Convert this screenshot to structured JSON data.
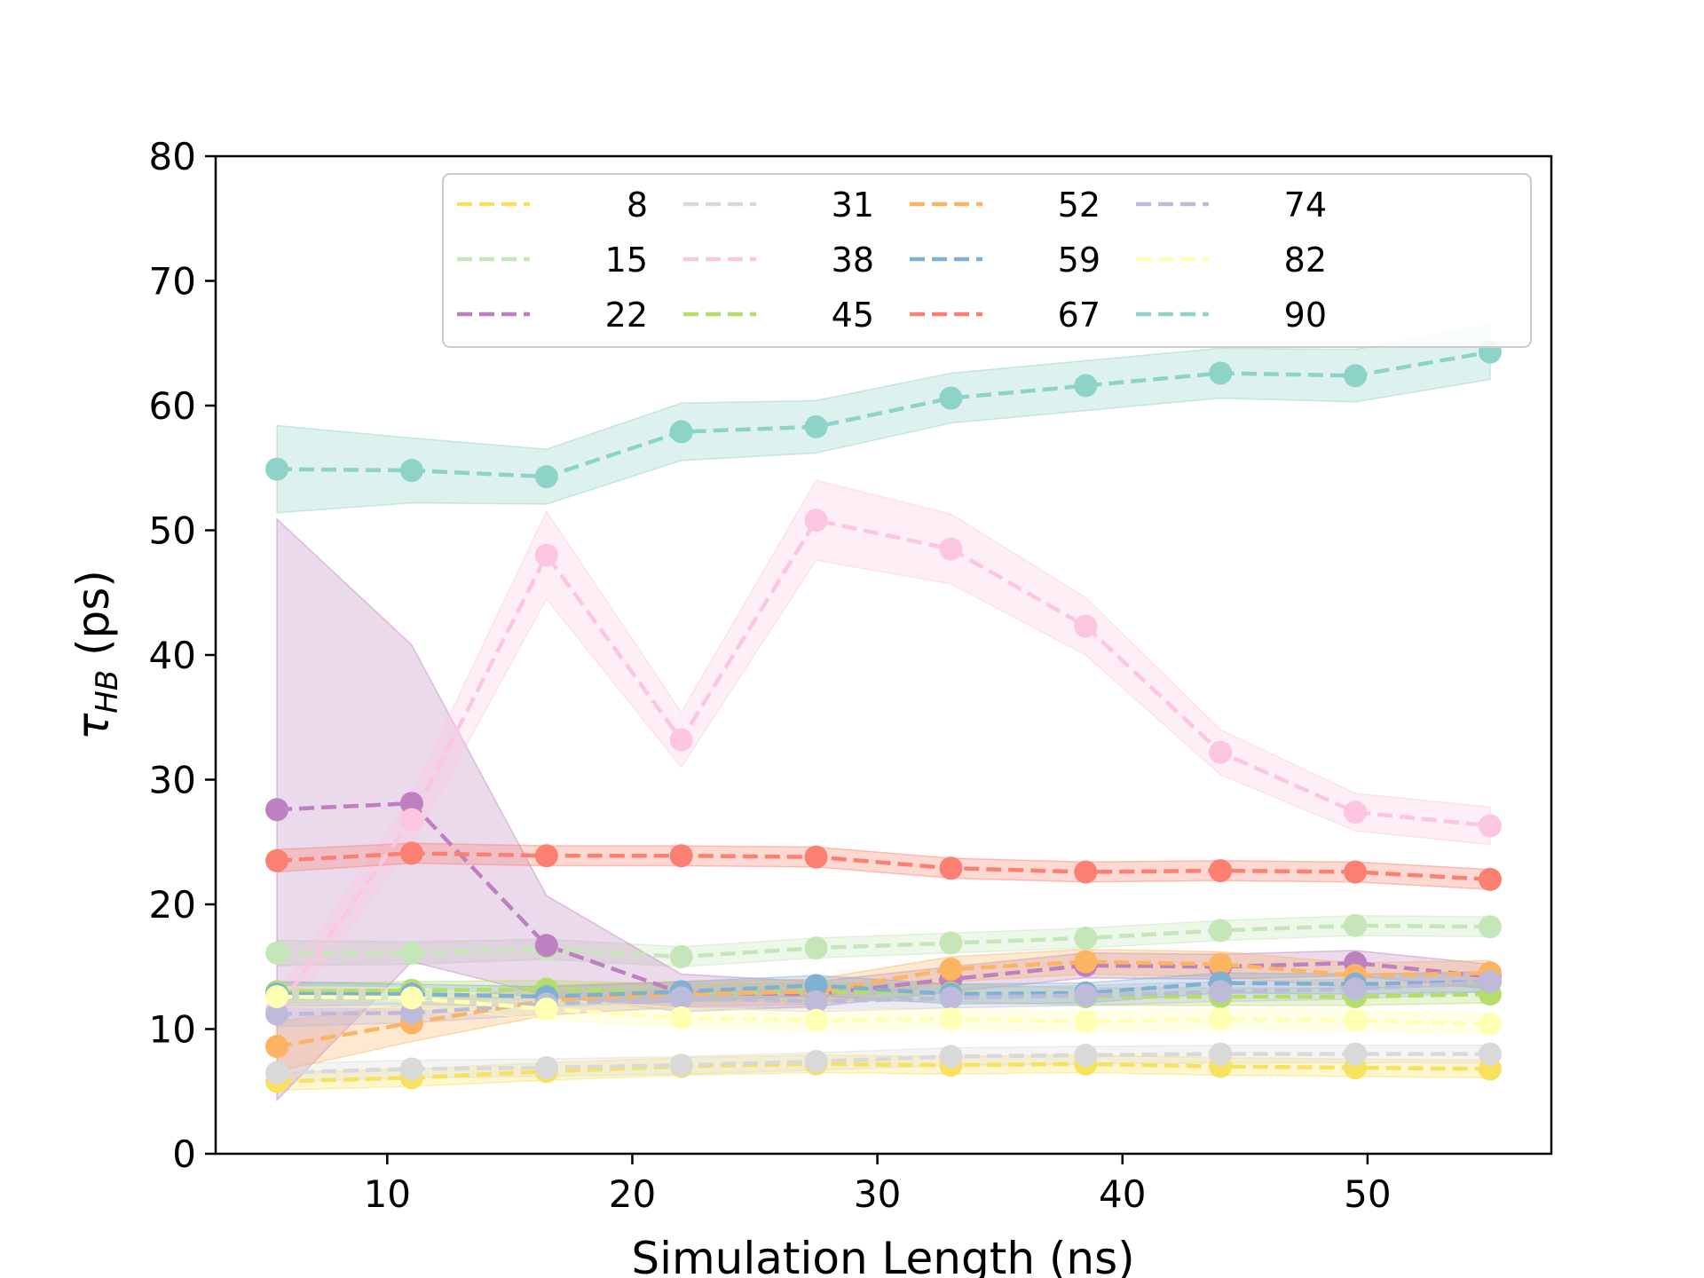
{
  "chart_data": {
    "type": "line",
    "xlabel": "Simulation Length (ns)",
    "ylabel_main": "τ",
    "ylabel_sub": "HB",
    "ylabel_unit": " (ps)",
    "xlim": [
      3.0,
      57.5
    ],
    "ylim": [
      0,
      80
    ],
    "xticks": [
      10,
      20,
      30,
      40,
      50
    ],
    "yticks": [
      0,
      10,
      20,
      30,
      40,
      50,
      60,
      70,
      80
    ],
    "grid": false,
    "legend_position": "top-right",
    "legend_columns": 5,
    "x": [
      5.5,
      11,
      16.5,
      22,
      27.5,
      33,
      38.5,
      44,
      49.5,
      55
    ],
    "series": [
      {
        "name": "8",
        "color": "#f8e15e",
        "values": [
          5.8,
          6.1,
          6.6,
          7.0,
          7.2,
          7.1,
          7.2,
          7.0,
          6.9,
          6.8
        ],
        "band": [
          0.7,
          0.7,
          0.7,
          0.7,
          0.7,
          0.7,
          0.7,
          0.7,
          0.7,
          0.7
        ]
      },
      {
        "name": "15",
        "color": "#c5e6b8",
        "values": [
          16.1,
          16.1,
          16.4,
          15.8,
          16.5,
          16.9,
          17.3,
          17.9,
          18.3,
          18.2
        ],
        "band": [
          1.0,
          0.9,
          0.8,
          0.8,
          0.8,
          0.8,
          0.8,
          0.8,
          0.8,
          0.8
        ]
      },
      {
        "name": "22",
        "color": "#be80c0",
        "values": [
          27.6,
          28.1,
          16.7,
          12.9,
          12.8,
          14.0,
          15.1,
          15.0,
          15.3,
          14.2
        ],
        "band": [
          23.3,
          12.7,
          4.0,
          1.5,
          1.0,
          1.0,
          1.0,
          1.0,
          1.0,
          1.0
        ]
      },
      {
        "name": "31",
        "color": "#d9d9d9",
        "values": [
          6.5,
          6.8,
          6.9,
          7.1,
          7.4,
          7.8,
          7.9,
          8.0,
          8.0,
          8.0
        ],
        "band": [
          0.7,
          0.7,
          0.7,
          0.7,
          0.7,
          0.7,
          0.7,
          0.7,
          0.7,
          0.7
        ]
      },
      {
        "name": "38",
        "color": "#fcc6e1",
        "values": [
          11.5,
          26.8,
          48.0,
          33.2,
          50.8,
          48.5,
          42.3,
          32.2,
          27.4,
          26.3
        ],
        "band": [
          1.2,
          2.0,
          3.5,
          2.2,
          3.2,
          2.8,
          2.3,
          1.8,
          1.5,
          1.5
        ]
      },
      {
        "name": "45",
        "color": "#b3de69",
        "values": [
          13.0,
          13.1,
          13.2,
          12.9,
          13.0,
          12.9,
          12.6,
          12.6,
          12.6,
          12.8
        ],
        "band": [
          0.7,
          0.7,
          0.7,
          0.7,
          0.7,
          0.7,
          0.7,
          0.7,
          0.7,
          0.7
        ]
      },
      {
        "name": "52",
        "color": "#fdb462",
        "values": [
          8.6,
          10.5,
          12.3,
          12.8,
          13.0,
          14.8,
          15.4,
          15.2,
          14.3,
          14.5
        ],
        "band": [
          2.0,
          1.5,
          1.2,
          1.0,
          1.0,
          1.0,
          1.0,
          1.0,
          1.0,
          1.0
        ]
      },
      {
        "name": "59",
        "color": "#80b1d3",
        "values": [
          12.8,
          12.8,
          12.6,
          13.0,
          13.5,
          12.8,
          12.9,
          13.7,
          13.6,
          13.8
        ],
        "band": [
          1.0,
          0.8,
          0.8,
          0.8,
          0.8,
          0.8,
          0.8,
          0.8,
          0.8,
          0.8
        ]
      },
      {
        "name": "67",
        "color": "#fb8072",
        "values": [
          23.5,
          24.1,
          23.9,
          23.9,
          23.8,
          22.9,
          22.6,
          22.7,
          22.6,
          22.0
        ],
        "band": [
          0.9,
          0.8,
          0.8,
          0.8,
          0.8,
          0.8,
          0.8,
          0.8,
          0.8,
          0.8
        ]
      },
      {
        "name": "74",
        "color": "#bebada",
        "values": [
          11.2,
          11.3,
          12.0,
          12.5,
          12.2,
          12.5,
          12.7,
          13.0,
          13.2,
          13.8
        ],
        "band": [
          1.0,
          0.8,
          0.8,
          0.8,
          0.8,
          0.8,
          0.8,
          0.8,
          0.8,
          0.8
        ]
      },
      {
        "name": "82",
        "color": "#ffffb3",
        "values": [
          12.6,
          12.5,
          11.6,
          10.9,
          10.7,
          10.8,
          10.6,
          10.8,
          10.7,
          10.4
        ],
        "band": [
          0.8,
          0.8,
          0.8,
          0.8,
          0.8,
          0.8,
          0.8,
          0.8,
          0.8,
          0.8
        ]
      },
      {
        "name": "90",
        "color": "#8dd3c7",
        "values": [
          54.9,
          54.8,
          54.3,
          57.9,
          58.3,
          60.6,
          61.6,
          62.6,
          62.4,
          64.3
        ],
        "band": [
          3.5,
          2.6,
          2.2,
          2.3,
          2.1,
          2.0,
          2.0,
          2.0,
          2.1,
          2.2
        ]
      }
    ]
  }
}
